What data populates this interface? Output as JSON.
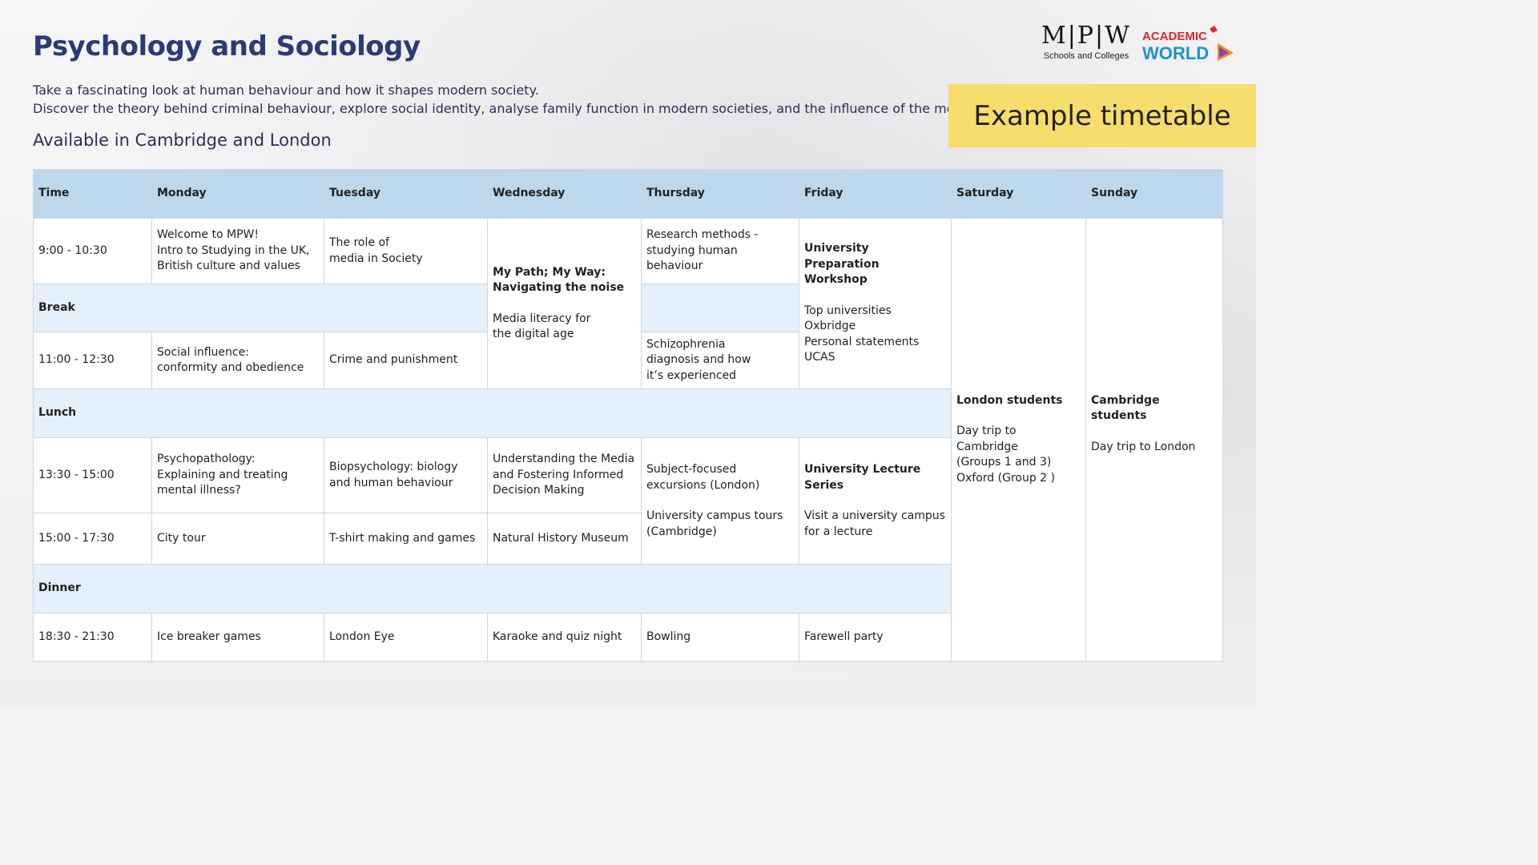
{
  "title": "Psychology and Sociology",
  "intro_line1": "Take a fascinating look at human behaviour and how it shapes modern society.",
  "intro_line2": "Discover the theory behind criminal behaviour, explore social identity, analyse family function in modern societies, and the influence of the media.",
  "availability": "Available in Cambridge and London",
  "logos": {
    "mpw_letters": "M|P|W",
    "mpw_sub": "Schools and Colleges",
    "academic_top": "ACADEMIC",
    "academic_bottom": "WORLD"
  },
  "example_label": "Example timetable",
  "colors": {
    "title": "#2b3a78",
    "header_bg": "#bdd7ec",
    "band_bg": "#e4f1fc",
    "example_bg": "#f7dd6c"
  },
  "timetable": {
    "headers": [
      "Time",
      "Monday",
      "Tuesday",
      "Wednesday",
      "Thursday",
      "Friday",
      "Saturday",
      "Sunday"
    ],
    "times": [
      "9:00 - 10:30",
      "11:00 - 12:30",
      "13:30 - 15:00",
      "15:00 - 17:30",
      "18:30 - 21:30"
    ],
    "bands": {
      "break": "Break",
      "lunch": "Lunch",
      "dinner": "Dinner"
    },
    "monday": {
      "s1": [
        "Welcome to MPW!",
        "Intro to Studying in the UK,",
        "British culture and values"
      ],
      "s2": [
        "Social influence:",
        "conformity and obedience"
      ],
      "s3": [
        "Psychopathology:",
        "Explaining and treating",
        "mental illness?"
      ],
      "s4": "City tour",
      "s5": "Ice breaker games"
    },
    "tuesday": {
      "s1": [
        "The role of",
        "media in Society"
      ],
      "s2": "Crime and punishment",
      "s3": [
        "Biopsychology: biology",
        "and human behaviour"
      ],
      "s4": "T-shirt making and games",
      "s5": "London Eye"
    },
    "wednesday": {
      "morning_title": [
        "My Path; My Way:",
        "Navigating the noise"
      ],
      "morning_body": [
        "Media literacy for",
        "the digital age"
      ],
      "s3": [
        "Understanding the Media",
        "and Fostering Informed",
        "Decision Making"
      ],
      "s4": "Natural History Museum",
      "s5": "Karaoke and quiz night"
    },
    "thursday": {
      "s1": [
        "Research methods -",
        "studying human behaviour"
      ],
      "s2": [
        "Schizophrenia",
        "diagnosis and how",
        "it’s experienced"
      ],
      "afternoon_a": [
        "Subject-focused",
        "excursions (London)"
      ],
      "afternoon_b": [
        "University campus tours",
        "(Cambridge)"
      ],
      "s5": "Bowling"
    },
    "friday": {
      "morning_title": [
        "University Preparation",
        "Workshop"
      ],
      "morning_items": [
        "Top universities",
        "Oxbridge",
        "Personal statements",
        "UCAS"
      ],
      "afternoon_title": "University Lecture Series",
      "afternoon_body": [
        "Visit a university campus",
        "for a lecture"
      ],
      "s5": "Farewell party"
    },
    "saturday": {
      "title": "London students",
      "lines": [
        "Day trip to Cambridge",
        "(Groups 1 and 3)",
        "Oxford (Group 2 )"
      ]
    },
    "sunday": {
      "title": "Cambridge students",
      "lines": [
        "Day trip to London"
      ]
    }
  }
}
